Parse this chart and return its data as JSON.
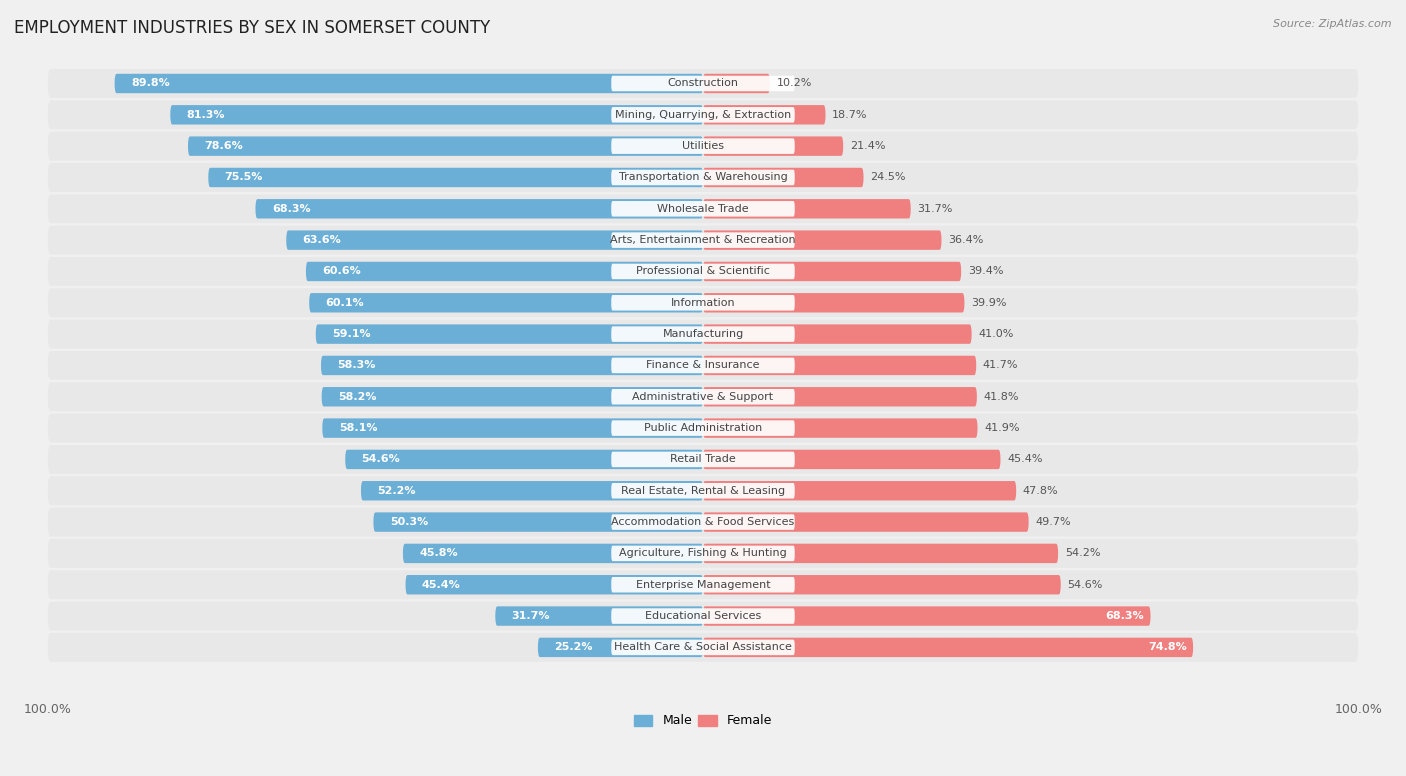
{
  "title": "EMPLOYMENT INDUSTRIES BY SEX IN SOMERSET COUNTY",
  "source": "Source: ZipAtlas.com",
  "categories": [
    "Construction",
    "Mining, Quarrying, & Extraction",
    "Utilities",
    "Transportation & Warehousing",
    "Wholesale Trade",
    "Arts, Entertainment & Recreation",
    "Professional & Scientific",
    "Information",
    "Manufacturing",
    "Finance & Insurance",
    "Administrative & Support",
    "Public Administration",
    "Retail Trade",
    "Real Estate, Rental & Leasing",
    "Accommodation & Food Services",
    "Agriculture, Fishing & Hunting",
    "Enterprise Management",
    "Educational Services",
    "Health Care & Social Assistance"
  ],
  "male_pct": [
    89.8,
    81.3,
    78.6,
    75.5,
    68.3,
    63.6,
    60.6,
    60.1,
    59.1,
    58.3,
    58.2,
    58.1,
    54.6,
    52.2,
    50.3,
    45.8,
    45.4,
    31.7,
    25.2
  ],
  "female_pct": [
    10.2,
    18.7,
    21.4,
    24.5,
    31.7,
    36.4,
    39.4,
    39.9,
    41.0,
    41.7,
    41.8,
    41.9,
    45.4,
    47.8,
    49.7,
    54.2,
    54.6,
    68.3,
    74.8
  ],
  "male_color": "#6baed6",
  "female_color": "#f08080",
  "background_color": "#f0f0f0",
  "row_bg_color": "#e8e8e8",
  "bar_bg_color": "#d8d8e8",
  "label_bg_color": "#ffffff",
  "title_fontsize": 12,
  "label_fontsize": 8,
  "pct_fontsize": 8,
  "legend_fontsize": 9
}
